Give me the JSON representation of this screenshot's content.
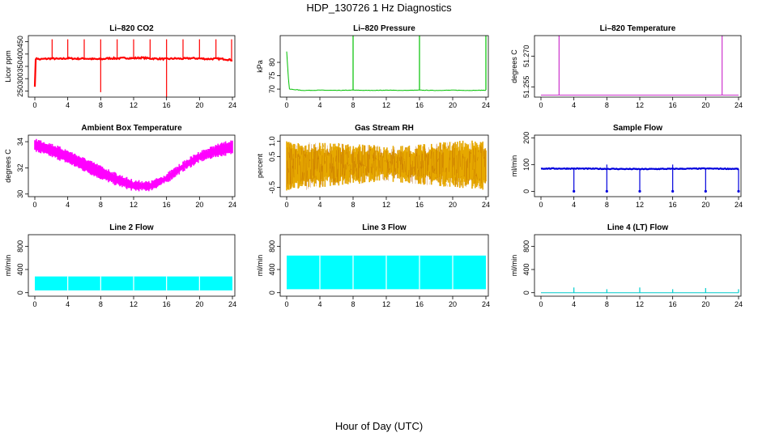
{
  "figure": {
    "title": "HDP_130726  1 Hz Diagnostics",
    "xlabel": "Hour of Day (UTC)"
  },
  "chart_data": [
    {
      "id": "co2",
      "type": "line",
      "title": "Li–820 CO2",
      "ylabel": "Licor ppm",
      "color": "#ff0000",
      "xlim": [
        0,
        24
      ],
      "ylim": [
        225,
        475
      ],
      "xticks": [
        "0",
        "4",
        "8",
        "12",
        "16",
        "20",
        "24"
      ],
      "yticks": [
        "250",
        "300",
        "350",
        "400",
        "450"
      ],
      "series": [
        {
          "x": [
            0,
            0.1,
            0.2,
            0.5,
            1,
            2,
            3,
            4,
            5,
            6,
            7,
            8,
            9,
            10,
            11,
            12,
            13,
            14,
            15,
            16,
            17,
            18,
            19,
            20,
            21,
            22,
            23,
            24
          ],
          "y": [
            270,
            375,
            385,
            378,
            380,
            382,
            380,
            383,
            381,
            382,
            380,
            379,
            383,
            382,
            384,
            383,
            385,
            382,
            381,
            380,
            382,
            381,
            383,
            382,
            380,
            381,
            380,
            375
          ]
        }
      ],
      "spikes": [
        {
          "x": 2.1,
          "y": 460
        },
        {
          "x": 4.0,
          "y": 460
        },
        {
          "x": 6.0,
          "y": 460
        },
        {
          "x": 8.0,
          "y": 460
        },
        {
          "x": 10.0,
          "y": 460
        },
        {
          "x": 12.0,
          "y": 460
        },
        {
          "x": 14.0,
          "y": 460
        },
        {
          "x": 16.0,
          "y": 460
        },
        {
          "x": 18.0,
          "y": 460
        },
        {
          "x": 20.0,
          "y": 460
        },
        {
          "x": 22.0,
          "y": 460
        },
        {
          "x": 23.9,
          "y": 460
        }
      ],
      "dips": [
        {
          "x": 8.0,
          "y": 245
        },
        {
          "x": 16.0,
          "y": 225
        }
      ]
    },
    {
      "id": "pressure",
      "type": "line",
      "title": "Li–820 Pressure",
      "ylabel": "kPa",
      "color": "#00c000",
      "xlim": [
        0,
        24
      ],
      "ylim": [
        67,
        90
      ],
      "xticks": [
        "0",
        "4",
        "8",
        "12",
        "16",
        "20",
        "24"
      ],
      "yticks": [
        "70",
        "75",
        "80"
      ],
      "series": [
        {
          "x": [
            0,
            0.3,
            2,
            4,
            6,
            8,
            10,
            12,
            14,
            16,
            18,
            20,
            22,
            24
          ],
          "y": [
            84,
            70,
            69.5,
            69.6,
            69.5,
            69.6,
            69.5,
            69.6,
            69.5,
            69.6,
            69.5,
            69.6,
            69.5,
            69.6
          ]
        }
      ],
      "spikes": [
        {
          "x": 8.0,
          "y": 90
        },
        {
          "x": 16.0,
          "y": 90
        },
        {
          "x": 24.0,
          "y": 90
        }
      ]
    },
    {
      "id": "temperature",
      "type": "line",
      "title": "Li–820 Temperature",
      "ylabel": "degrees C",
      "color": "#cc33cc",
      "xlim": [
        0,
        24
      ],
      "ylim": [
        51.25,
        51.28
      ],
      "xticks": [
        "0",
        "4",
        "8",
        "12",
        "16",
        "20",
        "24"
      ],
      "yticks": [
        "51.255",
        "51.270"
      ],
      "series": [
        {
          "x": [
            0,
            24
          ],
          "y": [
            51.251,
            51.251
          ]
        }
      ],
      "spikes": [
        {
          "x": 2.2,
          "y": 51.28
        },
        {
          "x": 22.0,
          "y": 51.28
        }
      ]
    },
    {
      "id": "ambient",
      "type": "area",
      "title": "Ambient Box Temperature",
      "ylabel": "degrees C",
      "color": "#ff00ff",
      "xlim": [
        0,
        24
      ],
      "ylim": [
        29.8,
        34.5
      ],
      "xticks": [
        "0",
        "4",
        "8",
        "12",
        "16",
        "20",
        "24"
      ],
      "yticks": [
        "30",
        "32",
        "34"
      ],
      "series": [
        {
          "name": "upper",
          "x": [
            0,
            2,
            4,
            6,
            8,
            10,
            12,
            14,
            16,
            18,
            20,
            22,
            24
          ],
          "y": [
            34.3,
            33.9,
            33.4,
            32.8,
            32.2,
            31.6,
            31.1,
            31.0,
            31.6,
            32.5,
            33.3,
            33.8,
            34.2
          ]
        },
        {
          "name": "lower",
          "x": [
            0,
            2,
            4,
            6,
            8,
            10,
            12,
            14,
            16,
            18,
            20,
            22,
            24
          ],
          "y": [
            33.2,
            32.8,
            32.3,
            31.7,
            31.1,
            30.6,
            30.2,
            30.2,
            30.8,
            31.7,
            32.4,
            32.8,
            33.0
          ]
        }
      ]
    },
    {
      "id": "rh",
      "type": "area",
      "title": "Gas Stream RH",
      "ylabel": "percent",
      "color": "#e6a800",
      "xlim": [
        0,
        24
      ],
      "ylim": [
        -0.8,
        1.2
      ],
      "xticks": [
        "0",
        "4",
        "8",
        "12",
        "16",
        "20",
        "24"
      ],
      "yticks": [
        "-0.5",
        "0.5",
        "1.0"
      ],
      "series": [
        {
          "name": "upper",
          "x": [
            0,
            2,
            4,
            6,
            8,
            10,
            12,
            14,
            16,
            18,
            20,
            22,
            24
          ],
          "y": [
            1.0,
            1.0,
            0.95,
            0.95,
            0.9,
            0.9,
            0.85,
            0.85,
            0.9,
            0.95,
            1.0,
            1.05,
            1.0
          ]
        },
        {
          "name": "lower",
          "x": [
            0,
            2,
            4,
            6,
            8,
            10,
            12,
            14,
            16,
            18,
            20,
            22,
            24
          ],
          "y": [
            -0.6,
            -0.6,
            -0.5,
            -0.45,
            -0.4,
            -0.35,
            -0.3,
            -0.35,
            -0.4,
            -0.45,
            -0.5,
            -0.55,
            -0.6
          ]
        }
      ]
    },
    {
      "id": "sampleflow",
      "type": "line",
      "title": "Sample Flow",
      "ylabel": "ml/min",
      "color": "#0000dd",
      "xlim": [
        0,
        24
      ],
      "ylim": [
        -20,
        210
      ],
      "xticks": [
        "0",
        "4",
        "8",
        "12",
        "16",
        "20",
        "24"
      ],
      "yticks": [
        "0",
        "100",
        "200"
      ],
      "series": [
        {
          "x": [
            0,
            4,
            8,
            12,
            16,
            20,
            24
          ],
          "y": [
            85,
            85,
            84,
            83,
            84,
            85,
            84
          ]
        }
      ],
      "spikes": [
        {
          "x": 8.0,
          "y": 100
        },
        {
          "x": 16.0,
          "y": 100
        }
      ],
      "dips": [
        {
          "x": 4.0,
          "y": 0
        },
        {
          "x": 8.0,
          "y": 0
        },
        {
          "x": 12.0,
          "y": 0
        },
        {
          "x": 16.0,
          "y": 0
        },
        {
          "x": 20.0,
          "y": 0
        },
        {
          "x": 24.0,
          "y": 0
        }
      ]
    },
    {
      "id": "line2",
      "type": "area",
      "title": "Line 2 Flow",
      "ylabel": "ml/min",
      "color": "#00ffff",
      "xlim": [
        0,
        24
      ],
      "ylim": [
        -60,
        1000
      ],
      "xticks": [
        "0",
        "4",
        "8",
        "12",
        "16",
        "20",
        "24"
      ],
      "yticks": [
        "0",
        "400",
        "800"
      ],
      "series": [
        {
          "name": "upper",
          "x": [
            0,
            24
          ],
          "y": [
            280,
            270
          ]
        },
        {
          "name": "lower",
          "x": [
            0,
            24
          ],
          "y": [
            40,
            40
          ]
        }
      ],
      "gaps": [
        4,
        8,
        12,
        16,
        20
      ]
    },
    {
      "id": "line3",
      "type": "area",
      "title": "Line 3 Flow",
      "ylabel": "ml/min",
      "color": "#00ffff",
      "xlim": [
        0,
        24
      ],
      "ylim": [
        -60,
        1000
      ],
      "xticks": [
        "0",
        "4",
        "8",
        "12",
        "16",
        "20",
        "24"
      ],
      "yticks": [
        "0",
        "400",
        "800"
      ],
      "series": [
        {
          "name": "upper",
          "x": [
            0,
            24
          ],
          "y": [
            640,
            640
          ]
        },
        {
          "name": "lower",
          "x": [
            0,
            24
          ],
          "y": [
            60,
            60
          ]
        }
      ],
      "gaps": [
        4,
        8,
        12,
        16,
        20
      ]
    },
    {
      "id": "line4",
      "type": "line",
      "title": "Line 4 (LT) Flow",
      "ylabel": "ml/min",
      "color": "#00cccc",
      "xlim": [
        0,
        24
      ],
      "ylim": [
        -60,
        1000
      ],
      "xticks": [
        "0",
        "4",
        "8",
        "12",
        "16",
        "20",
        "24"
      ],
      "yticks": [
        "0",
        "400",
        "800"
      ],
      "series": [
        {
          "x": [
            0,
            24
          ],
          "y": [
            0,
            0
          ]
        }
      ],
      "spikes": [
        {
          "x": 4.0,
          "y": 90
        },
        {
          "x": 8.0,
          "y": 60
        },
        {
          "x": 12.0,
          "y": 90
        },
        {
          "x": 16.0,
          "y": 60
        },
        {
          "x": 20.0,
          "y": 80
        },
        {
          "x": 24.0,
          "y": 60
        }
      ]
    }
  ]
}
